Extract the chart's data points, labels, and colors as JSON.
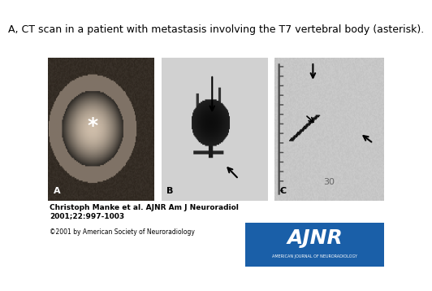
{
  "title": "A, CT scan in a patient with metastasis involving the T7 vertebral body (asterisk).",
  "title_fontsize": 9,
  "background_color": "#ffffff",
  "author_line1": "Christoph Manke et al. AJNR Am J Neuroradiol",
  "author_line2": "2001;22:997-1003",
  "copyright_line": "©2001 by American Society of Neuroradiology",
  "author_fontsize": 6.5,
  "copyright_fontsize": 5.5,
  "ajnr_box_color": "#1a5fa8",
  "ajnr_text": "AJNR",
  "ajnr_subtext": "AMERICAN JOURNAL OF NEURORADIOLOGY",
  "ajnr_text_color": "#ffffff"
}
